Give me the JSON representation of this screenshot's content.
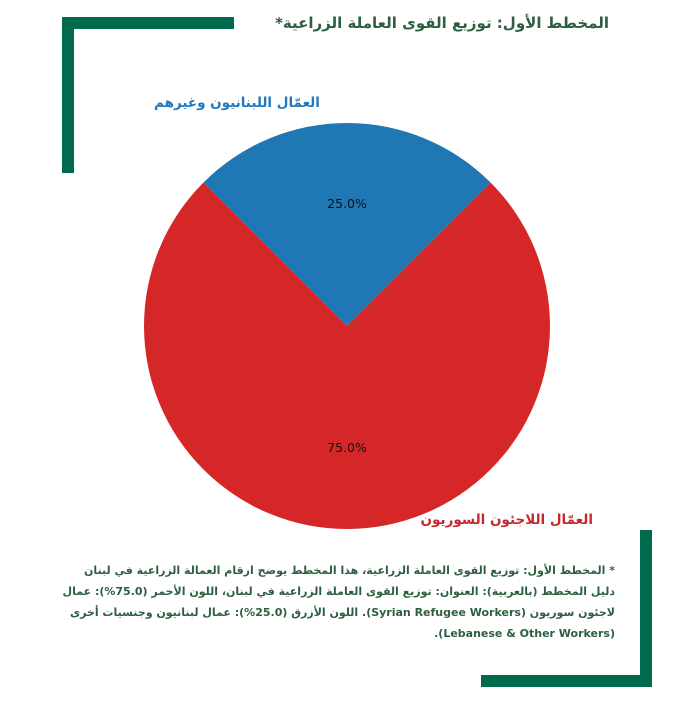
{
  "title": "المخطط الأول: توزيع القوى العاملة الزراعية*",
  "chart_data": {
    "type": "pie",
    "series": [
      {
        "label": "العمّال اللبنانيون وغيرهم",
        "value": 25.0,
        "value_label": "25.0%",
        "color": "#1f77b4"
      },
      {
        "label": "العمّال اللاجئون السوريون",
        "value": 75.0,
        "value_label": "75.0%",
        "color": "#d62728"
      }
    ]
  },
  "footnote": "* المخطط الأول: توزيع القوى العاملة الزراعية، هذا المخطط يوضح ارقام العمالة الزراعية في لبنان دليل المخطط (بالعربية): العنوان: توزيع القوى العاملة الزراعية في لبنان، اللون الأحمر (75.0%): عمال لاجئون سوريون (Syrian Refugee Workers). اللون الأزرق (25.0%): عمال لبنانيون وجنسيات أخرى (Lebanese & Other Workers).",
  "colors": {
    "accent_green": "#006a4e",
    "text_green": "#2c5f3f",
    "blue_label": "#1f78c1",
    "red_label": "#c4282c"
  }
}
